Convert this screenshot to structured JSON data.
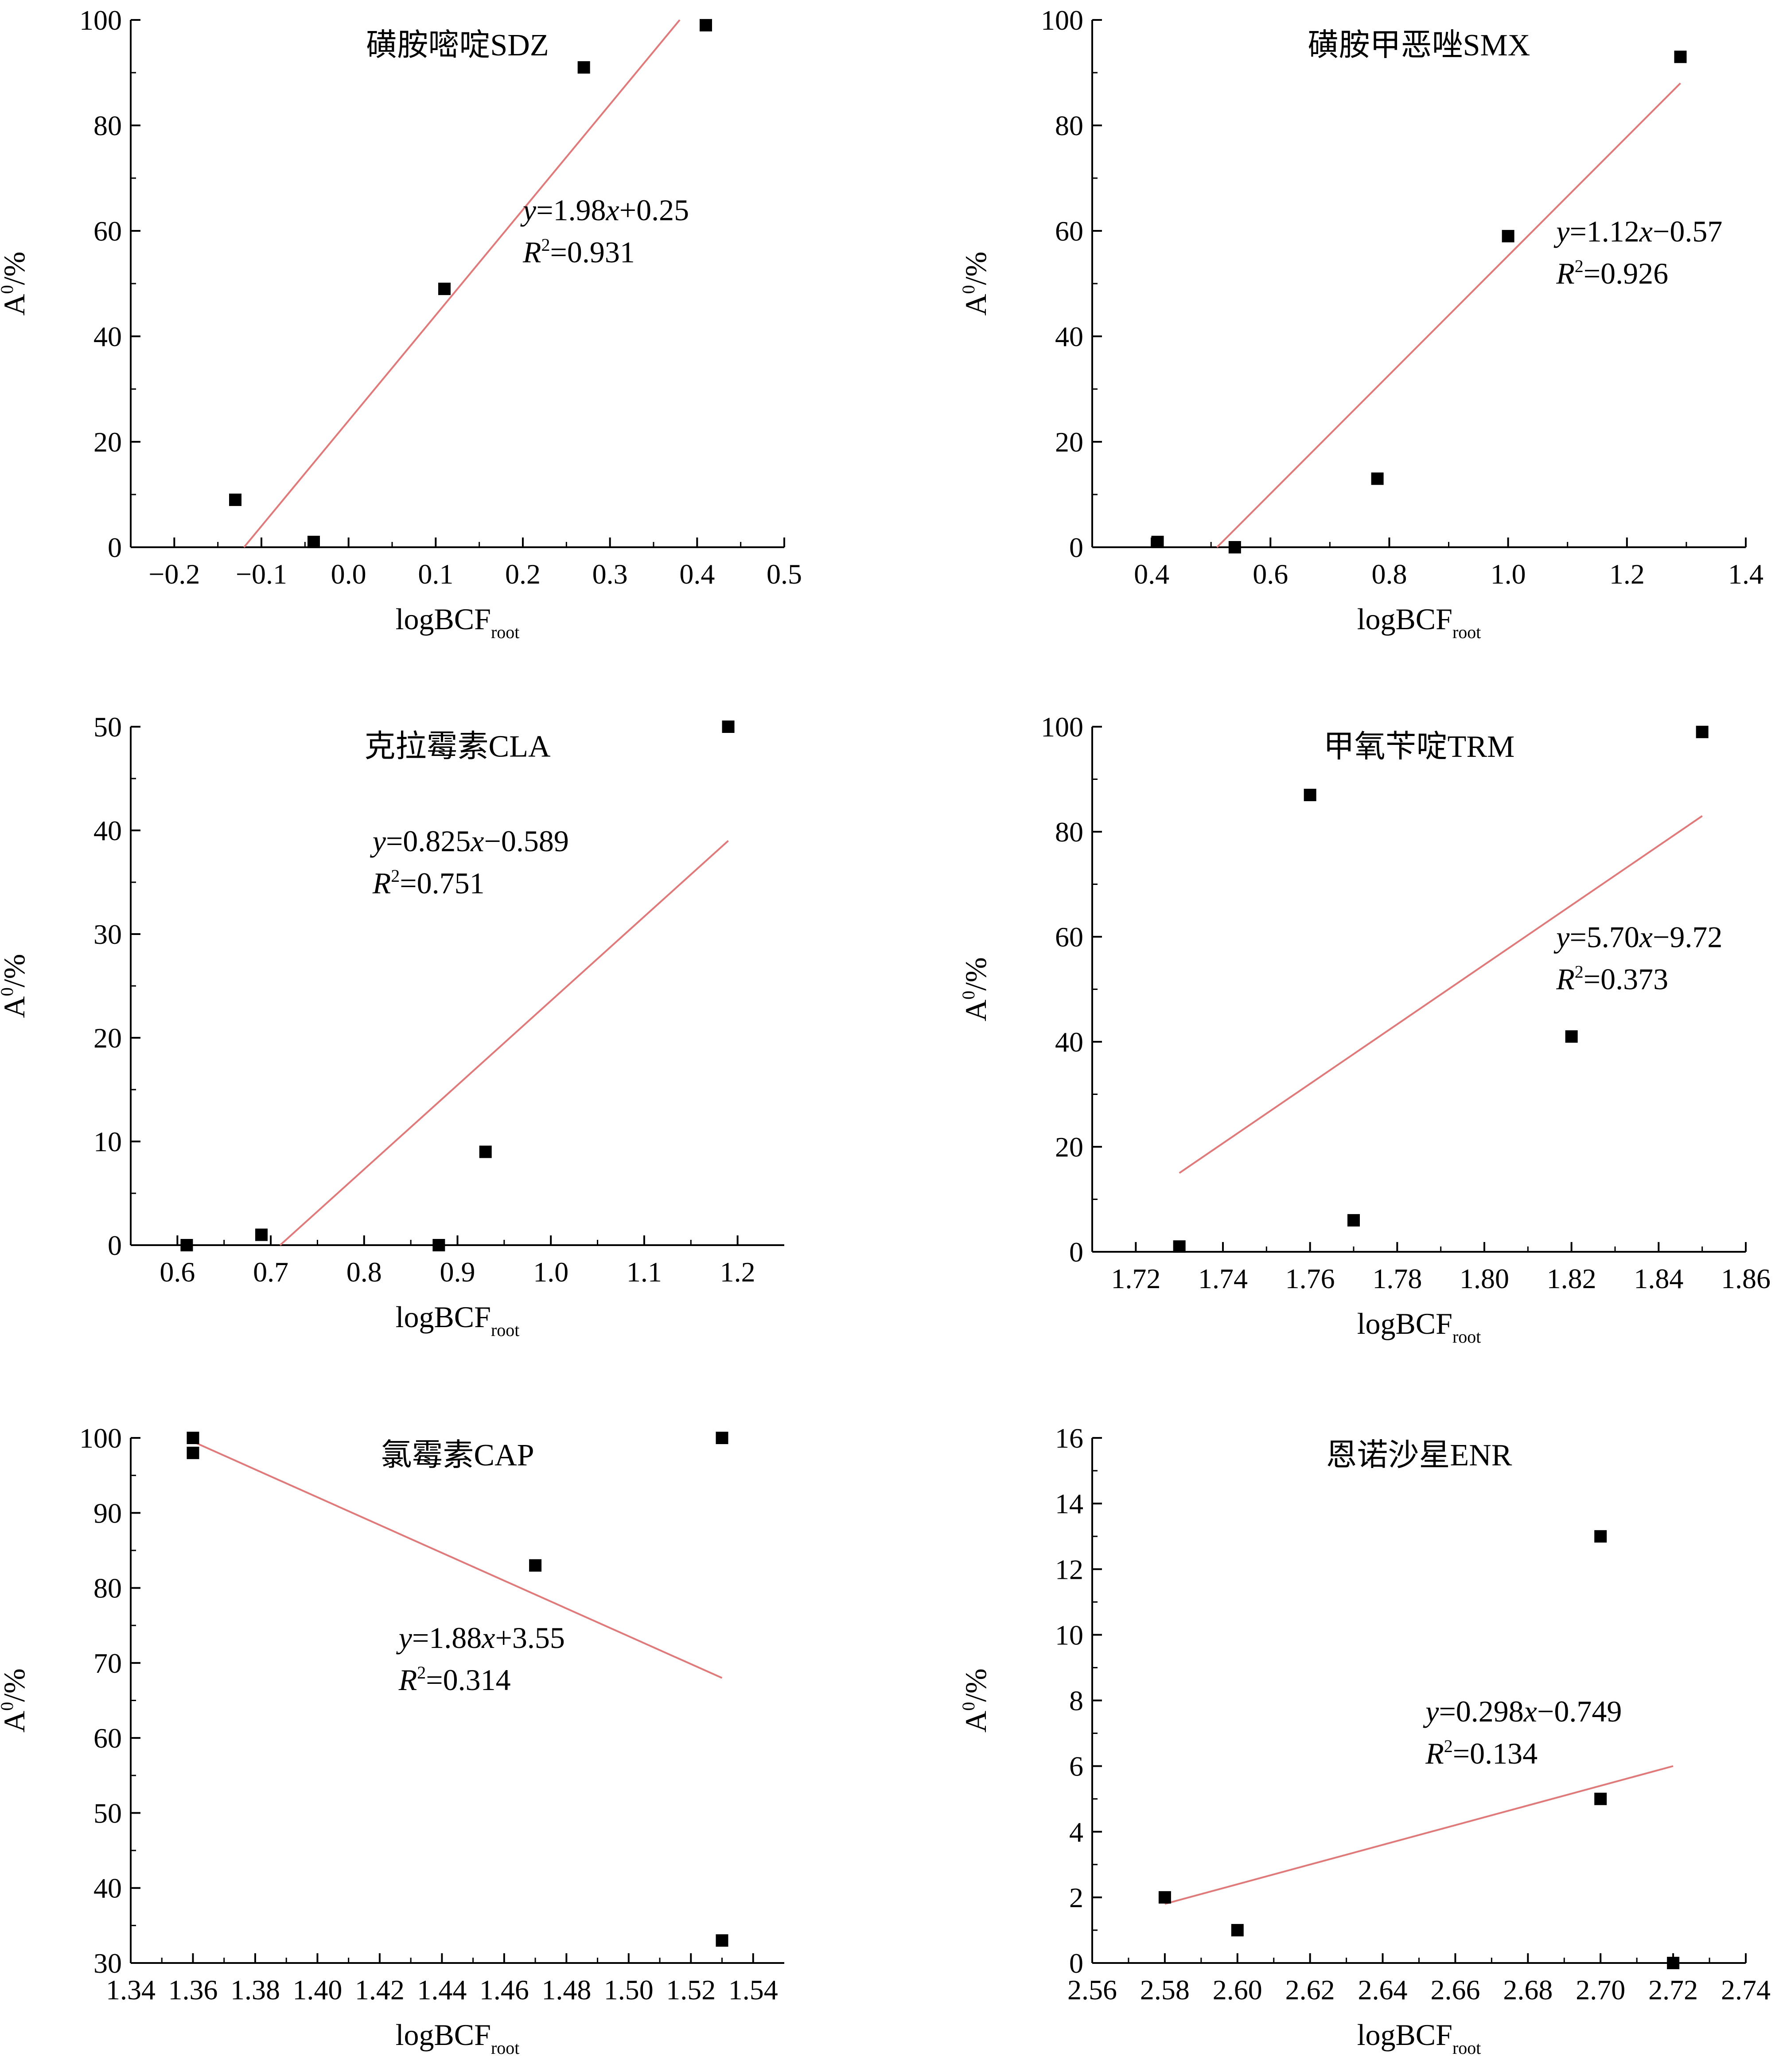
{
  "colors": {
    "fit_line": "#e07a7a",
    "marker": "#000000",
    "axis": "#000000",
    "background": "#ffffff"
  },
  "chart_data": [
    {
      "type": "scatter",
      "title": "磺胺嘧啶SDZ",
      "xlabel": "logBCF",
      "xlabel_sub": "root",
      "ylabel": "A",
      "ylabel_sup": "0",
      "ylabel_suffix": "/%",
      "xlim": [
        -0.25,
        0.5
      ],
      "ylim": [
        0,
        100
      ],
      "xticks": [
        -0.2,
        -0.1,
        0.0,
        0.1,
        0.2,
        0.3,
        0.4,
        0.5
      ],
      "xtick_labels": [
        "−0.2",
        "−0.1",
        "0.0",
        "0.1",
        "0.2",
        "0.3",
        "0.4",
        "0.5"
      ],
      "yticks": [
        0,
        20,
        40,
        60,
        80,
        100
      ],
      "ytick_labels": [
        "0",
        "20",
        "40",
        "60",
        "80",
        "100"
      ],
      "points": [
        {
          "x": -0.13,
          "y": 9
        },
        {
          "x": -0.04,
          "y": 1
        },
        {
          "x": 0.11,
          "y": 49
        },
        {
          "x": 0.27,
          "y": 91
        },
        {
          "x": 0.41,
          "y": 99
        }
      ],
      "fit_line": {
        "x": [
          -0.12,
          0.38
        ],
        "y": [
          0,
          100
        ]
      },
      "equation": {
        "y": "y",
        "rhs": "=1.98",
        "x": "x",
        "tail": "+0.25",
        "r": "R",
        "r_sup": "2",
        "r_val": "=0.931"
      },
      "grid": false
    },
    {
      "type": "scatter",
      "title": "磺胺甲恶唑SMX",
      "xlabel": "logBCF",
      "xlabel_sub": "root",
      "ylabel": "A",
      "ylabel_sup": "0",
      "ylabel_suffix": "/%",
      "xlim": [
        0.3,
        1.4
      ],
      "ylim": [
        0,
        100
      ],
      "xticks": [
        0.4,
        0.6,
        0.8,
        1.0,
        1.2,
        1.4
      ],
      "xtick_labels": [
        "0.4",
        "0.6",
        "0.8",
        "1.0",
        "1.2",
        "1.4"
      ],
      "yticks": [
        0,
        20,
        40,
        60,
        80,
        100
      ],
      "ytick_labels": [
        "0",
        "20",
        "40",
        "60",
        "80",
        "100"
      ],
      "points": [
        {
          "x": 0.41,
          "y": 1
        },
        {
          "x": 0.54,
          "y": 0
        },
        {
          "x": 0.78,
          "y": 13
        },
        {
          "x": 1.0,
          "y": 59
        },
        {
          "x": 1.29,
          "y": 93
        }
      ],
      "fit_line": {
        "x": [
          0.51,
          1.29
        ],
        "y": [
          0,
          88
        ]
      },
      "equation": {
        "y": "y",
        "rhs": "=1.12",
        "x": "x",
        "tail": "−0.57",
        "r": "R",
        "r_sup": "2",
        "r_val": "=0.926"
      },
      "grid": false
    },
    {
      "type": "scatter",
      "title": "克拉霉素CLA",
      "xlabel": "logBCF",
      "xlabel_sub": "root",
      "ylabel": "A",
      "ylabel_sup": "0",
      "ylabel_suffix": "/%",
      "xlim": [
        0.55,
        1.25
      ],
      "ylim": [
        0,
        50
      ],
      "xticks": [
        0.6,
        0.7,
        0.8,
        0.9,
        1.0,
        1.1,
        1.2
      ],
      "xtick_labels": [
        "0.6",
        "0.7",
        "0.8",
        "0.9",
        "1.0",
        "1.1",
        "1.2"
      ],
      "yticks": [
        0,
        10,
        20,
        30,
        40,
        50
      ],
      "ytick_labels": [
        "0",
        "10",
        "20",
        "30",
        "40",
        "50"
      ],
      "points": [
        {
          "x": 0.61,
          "y": 0
        },
        {
          "x": 0.69,
          "y": 1
        },
        {
          "x": 0.88,
          "y": 0
        },
        {
          "x": 0.93,
          "y": 9
        },
        {
          "x": 1.19,
          "y": 50
        }
      ],
      "fit_line": {
        "x": [
          0.71,
          1.19
        ],
        "y": [
          0,
          39
        ]
      },
      "equation": {
        "y": "y",
        "rhs": "=0.825",
        "x": "x",
        "tail": "−0.589",
        "r": "R",
        "r_sup": "2",
        "r_val": "=0.751"
      },
      "grid": false
    },
    {
      "type": "scatter",
      "title": "甲氧苄啶TRM",
      "xlabel": "logBCF",
      "xlabel_sub": "root",
      "ylabel": "A",
      "ylabel_sup": "0",
      "ylabel_suffix": "/%",
      "xlim": [
        1.71,
        1.86
      ],
      "ylim": [
        0,
        100
      ],
      "xticks": [
        1.72,
        1.74,
        1.76,
        1.78,
        1.8,
        1.82,
        1.84,
        1.86
      ],
      "xtick_labels": [
        "1.72",
        "1.74",
        "1.76",
        "1.78",
        "1.80",
        "1.82",
        "1.84",
        "1.86"
      ],
      "yticks": [
        0,
        20,
        40,
        60,
        80,
        100
      ],
      "ytick_labels": [
        "0",
        "20",
        "40",
        "60",
        "80",
        "100"
      ],
      "points": [
        {
          "x": 1.73,
          "y": 1
        },
        {
          "x": 1.76,
          "y": 87
        },
        {
          "x": 1.77,
          "y": 6
        },
        {
          "x": 1.82,
          "y": 41
        },
        {
          "x": 1.85,
          "y": 99
        }
      ],
      "fit_line": {
        "x": [
          1.73,
          1.85
        ],
        "y": [
          15,
          83
        ]
      },
      "equation": {
        "y": "y",
        "rhs": "=5.70",
        "x": "x",
        "tail": "−9.72",
        "r": "R",
        "r_sup": "2",
        "r_val": "=0.373"
      },
      "grid": false
    },
    {
      "type": "scatter",
      "title": "氯霉素CAP",
      "xlabel": "logBCF",
      "xlabel_sub": "root",
      "ylabel": "A",
      "ylabel_sup": "0",
      "ylabel_suffix": "/%",
      "xlim": [
        1.34,
        1.55
      ],
      "ylim": [
        30,
        100
      ],
      "xticks": [
        1.34,
        1.36,
        1.38,
        1.4,
        1.42,
        1.44,
        1.46,
        1.48,
        1.5,
        1.52,
        1.54
      ],
      "xtick_labels": [
        "1.34",
        "1.36",
        "1.38",
        "1.40",
        "1.42",
        "1.44",
        "1.46",
        "1.48",
        "1.50",
        "1.52",
        "1.54"
      ],
      "yticks": [
        30,
        40,
        50,
        60,
        70,
        80,
        90,
        100
      ],
      "ytick_labels": [
        "30",
        "40",
        "50",
        "60",
        "70",
        "80",
        "90",
        "100"
      ],
      "points": [
        {
          "x": 1.36,
          "y": 100
        },
        {
          "x": 1.36,
          "y": 98
        },
        {
          "x": 1.47,
          "y": 83
        },
        {
          "x": 1.53,
          "y": 100
        },
        {
          "x": 1.53,
          "y": 33
        }
      ],
      "fit_line": {
        "x": [
          1.36,
          1.53
        ],
        "y": [
          99.5,
          68
        ]
      },
      "equation": {
        "y": "y",
        "rhs": "=1.88",
        "x": "x",
        "tail": "+3.55",
        "r": "R",
        "r_sup": "2",
        "r_val": "=0.314"
      },
      "grid": false
    },
    {
      "type": "scatter",
      "title": "恩诺沙星ENR",
      "xlabel": "logBCF",
      "xlabel_sub": "root",
      "ylabel": "A",
      "ylabel_sup": "0",
      "ylabel_suffix": "/%",
      "xlim": [
        2.56,
        2.74
      ],
      "ylim": [
        0,
        16
      ],
      "xticks": [
        2.56,
        2.58,
        2.6,
        2.62,
        2.64,
        2.66,
        2.68,
        2.7,
        2.72,
        2.74
      ],
      "xtick_labels": [
        "2.56",
        "2.58",
        "2.60",
        "2.62",
        "2.64",
        "2.66",
        "2.68",
        "2.70",
        "2.72",
        "2.74"
      ],
      "yticks": [
        0,
        2,
        4,
        6,
        8,
        10,
        12,
        14,
        16
      ],
      "ytick_labels": [
        "0",
        "2",
        "4",
        "6",
        "8",
        "10",
        "12",
        "14",
        "16"
      ],
      "points": [
        {
          "x": 2.58,
          "y": 2
        },
        {
          "x": 2.6,
          "y": 1
        },
        {
          "x": 2.7,
          "y": 13
        },
        {
          "x": 2.7,
          "y": 5
        },
        {
          "x": 2.72,
          "y": 0
        }
      ],
      "fit_line": {
        "x": [
          2.58,
          2.72
        ],
        "y": [
          1.8,
          6
        ]
      },
      "equation": {
        "y": "y",
        "rhs": "=0.298",
        "x": "x",
        "tail": "−0.749",
        "r": "R",
        "r_sup": "2",
        "r_val": "=0.134"
      },
      "grid": false
    }
  ]
}
